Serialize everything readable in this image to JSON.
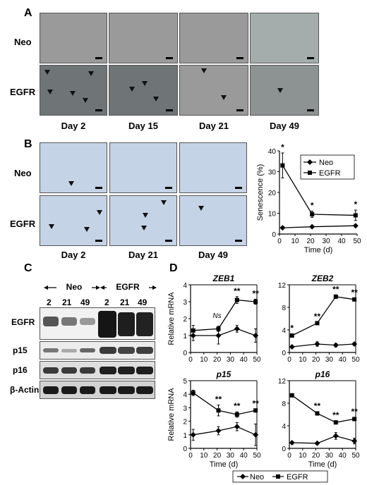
{
  "panel_A": {
    "label": "A",
    "rows": [
      "Neo",
      "EGFR"
    ],
    "days": [
      "Day 2",
      "Day 15",
      "Day 21",
      "Day 49"
    ]
  },
  "panel_B": {
    "label": "B",
    "rows": [
      "Neo",
      "EGFR"
    ],
    "days": [
      "Day 2",
      "Day 21",
      "Day 49"
    ]
  },
  "panel_C": {
    "label": "C",
    "groups": [
      "Neo",
      "EGFR"
    ],
    "lanes": [
      "2",
      "21",
      "49",
      "2",
      "21",
      "49"
    ],
    "proteins": [
      "EGFR",
      "p15",
      "p16",
      "β-Actin"
    ]
  },
  "panel_D": {
    "label": "D",
    "legend": {
      "neo": "Neo",
      "egfr": "EGFR"
    }
  },
  "chart_data": [
    {
      "type": "line",
      "panel": "B",
      "x": [
        2,
        21,
        49
      ],
      "series": [
        {
          "name": "Neo",
          "values": [
            3,
            3.5,
            4
          ],
          "marker": "diamond"
        },
        {
          "name": "EGFR",
          "values": [
            33,
            9.5,
            9
          ],
          "marker": "square"
        }
      ],
      "xlabel": "Time (d)",
      "ylabel": "Senescence (%)",
      "xlim": [
        0,
        50
      ],
      "ylim": [
        0,
        40
      ],
      "xticks": [
        "0",
        "10",
        "20",
        "30",
        "40",
        "50"
      ],
      "yticks": [
        "0",
        "10",
        "20",
        "30",
        "40"
      ],
      "annotations": [
        "*",
        "*",
        "*"
      ],
      "legend": "top-right"
    },
    {
      "type": "line",
      "panel": "D",
      "title": "ZEB1",
      "x": [
        2,
        21,
        35,
        49
      ],
      "series": [
        {
          "name": "Neo",
          "values": [
            1,
            1,
            1.4,
            1
          ],
          "marker": "diamond"
        },
        {
          "name": "EGFR",
          "values": [
            1.3,
            1.4,
            3.1,
            3.0
          ],
          "marker": "square"
        }
      ],
      "xlabel": "",
      "ylabel": "Relative mRNA",
      "xlim": [
        0,
        50
      ],
      "ylim": [
        0,
        4
      ],
      "xticks": [
        "0",
        "10",
        "20",
        "30",
        "40",
        "50"
      ],
      "yticks": [
        "0",
        "1",
        "2",
        "3",
        "4"
      ],
      "annotations": [
        "Ns",
        "**",
        "**"
      ]
    },
    {
      "type": "line",
      "panel": "D",
      "title": "ZEB2",
      "x": [
        2,
        21,
        35,
        49
      ],
      "series": [
        {
          "name": "Neo",
          "values": [
            1,
            1.5,
            1.3,
            1.5
          ],
          "marker": "diamond"
        },
        {
          "name": "EGFR",
          "values": [
            3,
            5.2,
            9.9,
            9.4
          ],
          "marker": "square"
        }
      ],
      "xlabel": "",
      "ylabel": "",
      "xlim": [
        0,
        50
      ],
      "ylim": [
        0,
        12
      ],
      "xticks": [
        "0",
        "10",
        "20",
        "30",
        "40",
        "50"
      ],
      "yticks": [
        "0",
        "4",
        "8",
        "12"
      ],
      "annotations": [
        "*",
        "**",
        "**",
        "**"
      ]
    },
    {
      "type": "line",
      "panel": "D",
      "title": "p15",
      "x": [
        2,
        21,
        35,
        49
      ],
      "series": [
        {
          "name": "Neo",
          "values": [
            1,
            1.3,
            1.6,
            1.0
          ],
          "marker": "diamond"
        },
        {
          "name": "EGFR",
          "values": [
            4.1,
            2.8,
            2.5,
            2.8
          ],
          "marker": "square"
        }
      ],
      "xlabel": "Time (d)",
      "ylabel": "Relative mRNA",
      "xlim": [
        0,
        50
      ],
      "ylim": [
        0,
        5
      ],
      "xticks": [
        "0",
        "10",
        "20",
        "30",
        "40",
        "50"
      ],
      "yticks": [
        "0",
        "1",
        "2",
        "3",
        "4",
        "5"
      ],
      "annotations": [
        "**",
        "**",
        "**"
      ]
    },
    {
      "type": "line",
      "panel": "D",
      "title": "p16",
      "x": [
        2,
        21,
        35,
        49
      ],
      "series": [
        {
          "name": "Neo",
          "values": [
            1,
            0.9,
            2.2,
            1.3
          ],
          "marker": "diamond"
        },
        {
          "name": "EGFR",
          "values": [
            9.4,
            6.2,
            4.6,
            5.2
          ],
          "marker": "square"
        }
      ],
      "xlabel": "Time (d)",
      "ylabel": "",
      "xlim": [
        0,
        50
      ],
      "ylim": [
        0,
        12
      ],
      "xticks": [
        "0",
        "10",
        "20",
        "30",
        "40",
        "50"
      ],
      "yticks": [
        "0",
        "4",
        "8",
        "12"
      ],
      "annotations": [
        "**",
        "**",
        "**"
      ]
    }
  ]
}
